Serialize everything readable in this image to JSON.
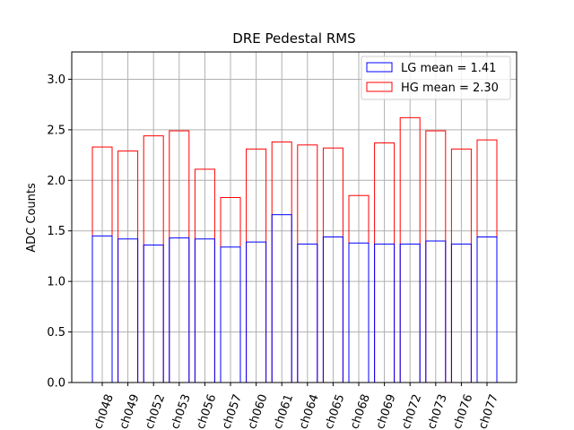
{
  "chart_data": {
    "type": "bar",
    "title": "DRE Pedestal RMS",
    "xlabel": "",
    "ylabel": "ADC Counts",
    "ylim": [
      0,
      3.27
    ],
    "yticks": [
      "0.0",
      "0.5",
      "1.0",
      "1.5",
      "2.0",
      "2.5",
      "3.0"
    ],
    "ytick_values": [
      0,
      0.5,
      1.0,
      1.5,
      2.0,
      2.5,
      3.0
    ],
    "grid": true,
    "legend_position": "top-right",
    "categories": [
      "ch048",
      "ch049",
      "ch052",
      "ch053",
      "ch056",
      "ch057",
      "ch060",
      "ch061",
      "ch064",
      "ch065",
      "ch068",
      "ch069",
      "ch072",
      "ch073",
      "ch076",
      "ch077"
    ],
    "series": [
      {
        "name": "LG mean = 1.41",
        "color": "#0000ff",
        "values": [
          1.45,
          1.42,
          1.36,
          1.43,
          1.42,
          1.34,
          1.39,
          1.66,
          1.37,
          1.44,
          1.38,
          1.37,
          1.37,
          1.4,
          1.37,
          1.44
        ]
      },
      {
        "name": "HG mean = 2.30",
        "color": "#ff0000",
        "values": [
          2.33,
          2.29,
          2.44,
          2.49,
          2.11,
          1.83,
          2.31,
          2.38,
          2.35,
          2.32,
          1.85,
          2.37,
          2.62,
          2.49,
          2.31,
          2.4
        ]
      }
    ]
  }
}
